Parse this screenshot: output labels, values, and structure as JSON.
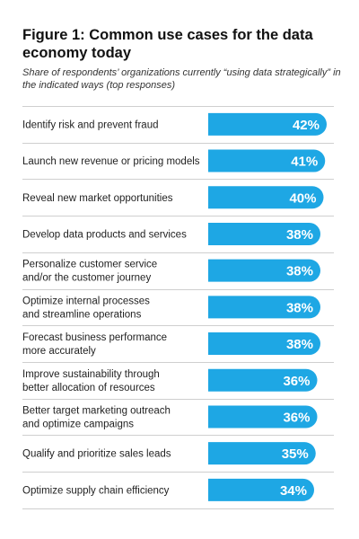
{
  "chart_data": {
    "type": "bar",
    "orientation": "horizontal",
    "title": "Figure 1: Common use cases for the data economy today",
    "subtitle": "Share of respondents’ organizations currently “using data strategically” in the indicated ways (top responses)",
    "categories": [
      [
        "Identify risk and prevent fraud"
      ],
      [
        "Launch new revenue or pricing models"
      ],
      [
        "Reveal new market opportunities"
      ],
      [
        "Develop data products and services"
      ],
      [
        "Personalize customer service",
        "and/or the customer journey"
      ],
      [
        "Optimize internal processes",
        "and streamline operations"
      ],
      [
        "Forecast business performance",
        "more accurately"
      ],
      [
        "Improve sustainability through",
        "better allocation of resources"
      ],
      [
        "Better target marketing outreach",
        "and optimize campaigns"
      ],
      [
        "Qualify and prioritize sales leads"
      ],
      [
        "Optimize supply chain efficiency"
      ]
    ],
    "values": [
      42,
      41,
      40,
      38,
      38,
      38,
      38,
      36,
      36,
      35,
      34
    ],
    "value_labels": [
      "42%",
      "41%",
      "40%",
      "38%",
      "38%",
      "38%",
      "38%",
      "36%",
      "36%",
      "35%",
      "34%"
    ],
    "unit": "%",
    "bar_color": "#1ea7e4",
    "divider_color": "#cfcfcf",
    "grid": false,
    "legend": "none"
  }
}
